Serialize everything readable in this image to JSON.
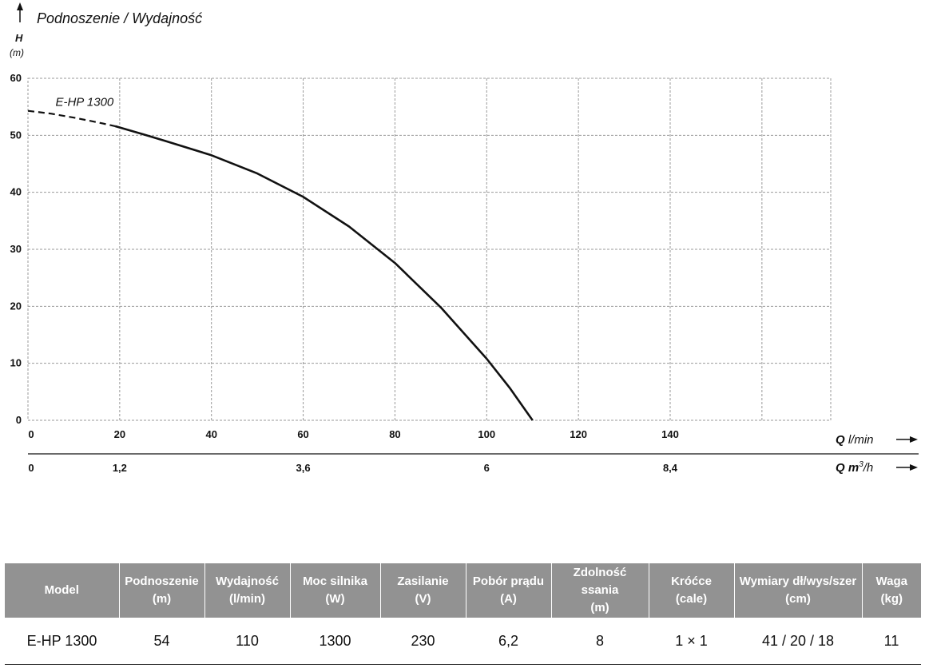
{
  "chart_data": {
    "type": "line",
    "title": "Podnoszenie / Wydajność",
    "ylabel": "H",
    "yunit": "(m)",
    "xlabel": "Q l/min",
    "x2label_prefix": "Q m",
    "x2label_sup": "3",
    "x2label_suffix": "/h",
    "ylim": [
      0,
      60
    ],
    "xlim": [
      0,
      175
    ],
    "grid": true,
    "y_ticks": [
      "0",
      "10",
      "20",
      "30",
      "40",
      "50",
      "60"
    ],
    "x_ticks": [
      "0",
      "20",
      "40",
      "60",
      "80",
      "100",
      "120",
      "140"
    ],
    "x2_ticks": [
      {
        "label": "0",
        "at_lmin": 0
      },
      {
        "label": "1,2",
        "at_lmin": 20
      },
      {
        "label": "3,6",
        "at_lmin": 60
      },
      {
        "label": "6",
        "at_lmin": 100
      },
      {
        "label": "8,4",
        "at_lmin": 140
      }
    ],
    "series": [
      {
        "name": "E-HP 1300",
        "dashed_until_x": 19,
        "x": [
          0,
          5,
          10,
          15,
          19,
          25,
          30,
          40,
          50,
          60,
          70,
          80,
          90,
          100,
          105,
          110
        ],
        "y": [
          54.3,
          53.8,
          53.1,
          52.3,
          51.6,
          50.2,
          49.0,
          46.5,
          43.3,
          39.2,
          34.0,
          27.6,
          19.8,
          10.8,
          5.7,
          0
        ]
      }
    ]
  },
  "table": {
    "headers": [
      {
        "line1": "Model",
        "line2": ""
      },
      {
        "line1": "Podnoszenie",
        "line2": "(m)"
      },
      {
        "line1": "Wydajność",
        "line2": "(l/min)"
      },
      {
        "line1": "Moc silnika",
        "line2": "(W)"
      },
      {
        "line1": "Zasilanie",
        "line2": "(V)"
      },
      {
        "line1": "Pobór prądu",
        "line2": "(A)"
      },
      {
        "line1": "Zdolność ssania",
        "line2": "(m)"
      },
      {
        "line1": "Króćce",
        "line2": "(cale)"
      },
      {
        "line1": "Wymiary dł/wys/szer",
        "line2": "(cm)"
      },
      {
        "line1": "Waga",
        "line2": "(kg)"
      }
    ],
    "rows": [
      [
        "E-HP 1300",
        "54",
        "110",
        "1300",
        "230",
        "6,2",
        "8",
        "1 × 1",
        "41 / 20 / 18",
        "11"
      ]
    ]
  }
}
